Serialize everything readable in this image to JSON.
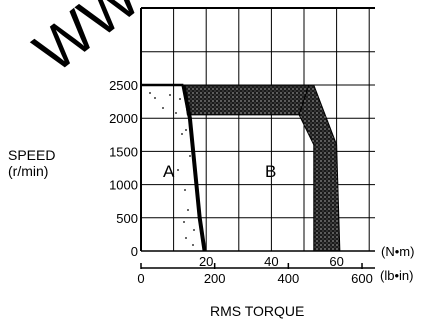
{
  "chart_data": {
    "type": "area",
    "title": "",
    "ylabel_lines": [
      "SPEED",
      "(r/min)"
    ],
    "xlabel": "RMS TORQUE",
    "y_axis": {
      "ticks": [
        "0",
        "500",
        "1000",
        "1500",
        "2000",
        "2500"
      ],
      "ylim": [
        0,
        3000
      ]
    },
    "x_axis_primary": {
      "unit": "(N•m)",
      "ticks": [
        "20",
        "40",
        "60"
      ],
      "xlim": [
        0,
        70
      ]
    },
    "x_axis_secondary": {
      "unit": "(lb•in)",
      "ticks": [
        "0",
        "200",
        "400",
        "600"
      ]
    },
    "grid": true,
    "regions": [
      {
        "name": "A",
        "description_from_image": "intermittent region (left, dotted)"
      },
      {
        "name": "B",
        "description_from_image": "continuous region (center)"
      }
    ],
    "boundary_A": {
      "x": [
        13,
        15,
        17,
        18,
        19.5
      ],
      "y": [
        2500,
        2000,
        1000,
        500,
        0
      ]
    },
    "boundary_B": {
      "x": [
        13,
        53,
        60,
        61
      ],
      "y": [
        2500,
        2500,
        1600,
        0
      ]
    },
    "watermark": "WWW"
  }
}
